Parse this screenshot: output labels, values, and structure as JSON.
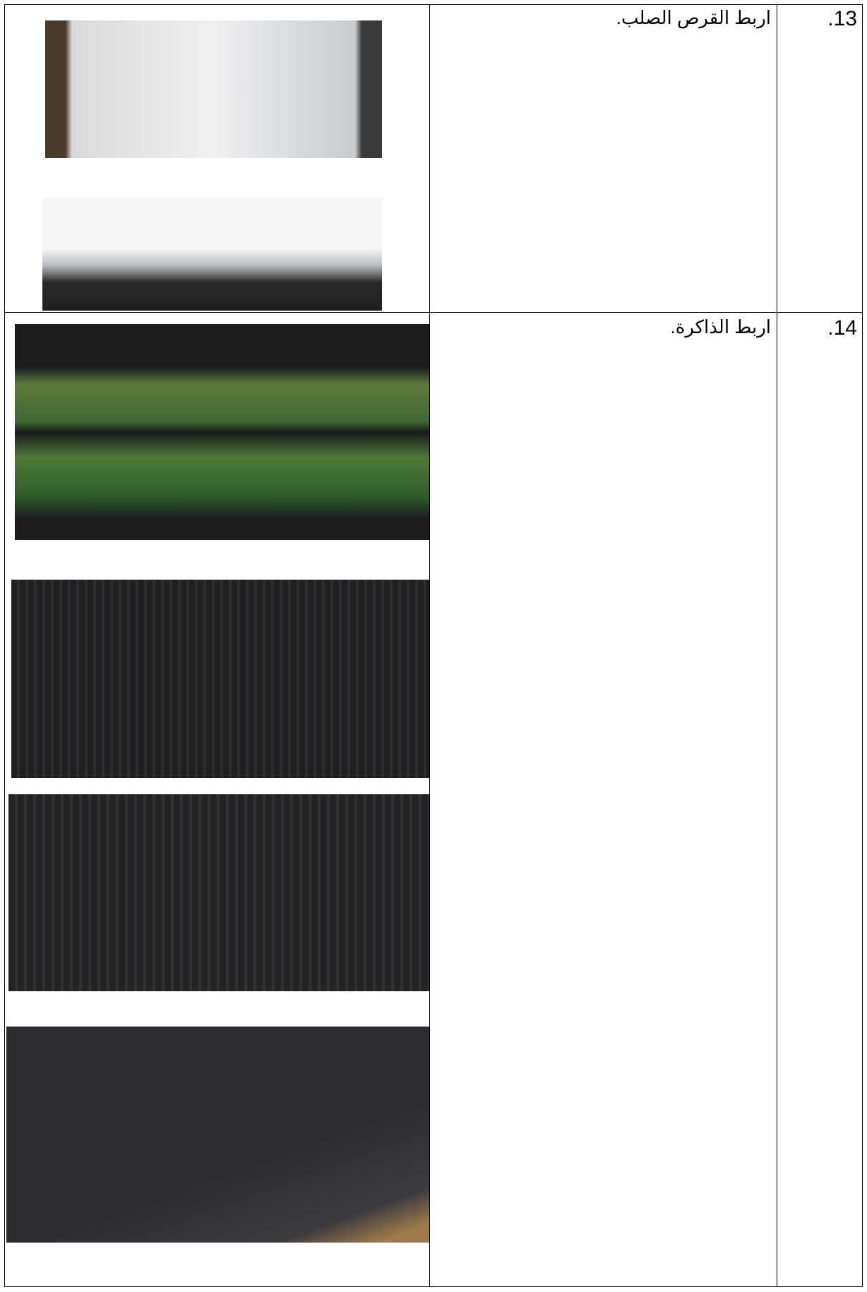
{
  "table": {
    "rows": [
      {
        "number": "13.",
        "text": "اربط القرص الصلب."
      },
      {
        "number": "14.",
        "text": "اربط الذاكرة."
      }
    ]
  }
}
